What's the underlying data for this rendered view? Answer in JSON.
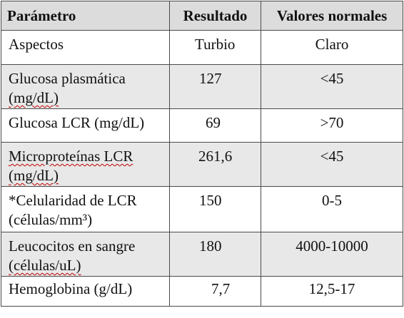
{
  "headers": [
    "Parámetro",
    "Resultado",
    "Valores normales"
  ],
  "rows": [
    {
      "param_a": "Aspectos",
      "param_b": "",
      "result": "Turbio",
      "normal": "Claro"
    },
    {
      "param_a": "Glucosa plasmática",
      "param_b": "(mg/dL)",
      "result": "127",
      "normal": "<45"
    },
    {
      "param_a": "Glucosa LCR (mg/dL)",
      "param_b": "",
      "result": "69",
      "normal": ">70"
    },
    {
      "param_a": "Microproteínas LCR",
      "param_b": "(mg/dL)",
      "result": "261,6",
      "normal": "<45"
    },
    {
      "param_a": "*Celularidad de LCR",
      "param_b": "(células/mm³)",
      "result": "150",
      "normal": "0-5"
    },
    {
      "param_a": "Leucocitos en sangre",
      "param_b": "(células/uL)",
      "result": "180",
      "normal": "4000-10000"
    },
    {
      "param_a": "Hemoglobina (g/dL)",
      "param_b": "",
      "result": "7,7",
      "normal": "12,5-17"
    }
  ]
}
